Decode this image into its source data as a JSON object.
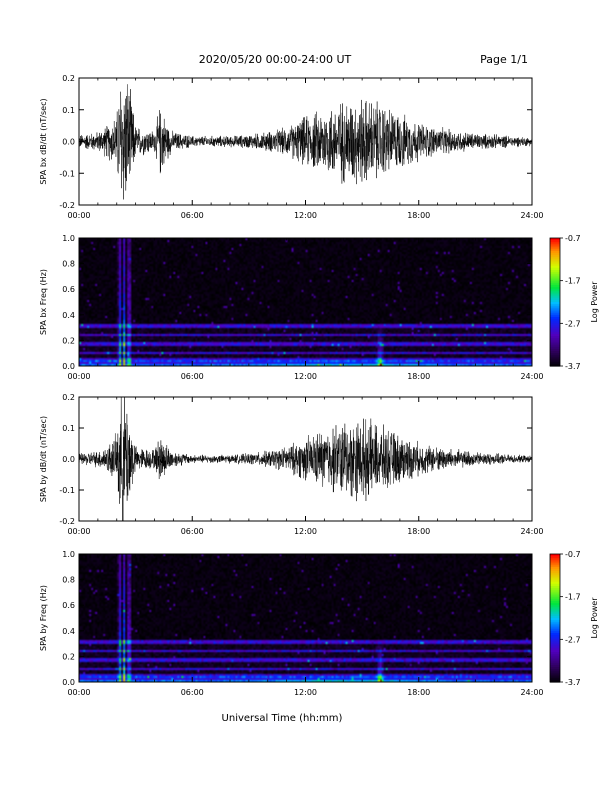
{
  "header": {
    "title": "2020/05/20  00:00-24:00 UT",
    "page": "Page 1/1"
  },
  "x_axis": {
    "title": "Universal Time (hh:mm)",
    "range_hours": [
      0,
      24
    ],
    "ticks_hours": [
      0,
      6,
      12,
      18,
      24
    ],
    "tick_labels": [
      "00:00",
      "06:00",
      "12:00",
      "18:00",
      "24:00"
    ]
  },
  "chart_data": [
    {
      "type": "line",
      "id": "bx-waveform",
      "ylabel": "SPA bx dB/dt (nT/sec)",
      "ylim": [
        -0.2,
        0.2
      ],
      "y_ticks": [
        -0.2,
        -0.1,
        0.0,
        0.1,
        0.2
      ],
      "y_tick_labels": [
        "-0.2",
        "-0.1",
        "0.0",
        "0.1",
        "0.2"
      ],
      "series": [
        {
          "x_hours": [
            0,
            1,
            1.5,
            2,
            2.2,
            2.5,
            2.8,
            3,
            4,
            4.3,
            4.8,
            5,
            6,
            7,
            8,
            9,
            10,
            11,
            12,
            13,
            14,
            15,
            16,
            17,
            18,
            19,
            20,
            21,
            22,
            23,
            24
          ],
          "envelope": [
            0.025,
            0.035,
            0.06,
            0.1,
            0.25,
            0.25,
            0.15,
            0.055,
            0.04,
            0.13,
            0.05,
            0.035,
            0.02,
            0.02,
            0.02,
            0.025,
            0.035,
            0.05,
            0.09,
            0.12,
            0.15,
            0.16,
            0.14,
            0.1,
            0.07,
            0.05,
            0.04,
            0.03,
            0.025,
            0.02,
            0.015
          ]
        }
      ]
    },
    {
      "type": "heatmap",
      "id": "bx-spectrogram",
      "ylabel": "SPA bx Freq (Hz)",
      "ylim": [
        0.0,
        1.0
      ],
      "y_ticks": [
        0.0,
        0.2,
        0.4,
        0.6,
        0.8,
        1.0
      ],
      "y_tick_labels": [
        "0.0",
        "0.2",
        "0.4",
        "0.6",
        "0.8",
        "1.0"
      ],
      "colorbar": {
        "label": "Log Power",
        "range": [
          -3.7,
          -0.7
        ],
        "ticks": [
          -0.7,
          -1.7,
          -2.7,
          -3.7
        ],
        "tick_labels": [
          "-0.7",
          "-1.7",
          "-2.7",
          "-3.7"
        ]
      },
      "bands_hz": [
        0.05,
        0.1,
        0.17,
        0.24,
        0.31
      ],
      "spikes_hours": [
        2.1,
        2.35,
        2.6
      ],
      "event_hours": 15.9
    },
    {
      "type": "line",
      "id": "by-waveform",
      "ylabel": "SPA by dB/dt (nT/sec)",
      "ylim": [
        -0.2,
        0.2
      ],
      "y_ticks": [
        -0.2,
        -0.1,
        0.0,
        0.1,
        0.2
      ],
      "y_tick_labels": [
        "-0.2",
        "-0.1",
        "0.0",
        "0.1",
        "0.2"
      ],
      "series": [
        {
          "x_hours": [
            0,
            1,
            1.5,
            2,
            2.2,
            2.5,
            2.8,
            3,
            4,
            4.3,
            4.8,
            5,
            6,
            7,
            8,
            9,
            10,
            11,
            12,
            13,
            14,
            15,
            16,
            17,
            18,
            19,
            20,
            21,
            22,
            23,
            24
          ],
          "envelope": [
            0.02,
            0.03,
            0.05,
            0.09,
            0.25,
            0.25,
            0.12,
            0.045,
            0.035,
            0.09,
            0.04,
            0.03,
            0.015,
            0.015,
            0.015,
            0.02,
            0.03,
            0.045,
            0.08,
            0.11,
            0.14,
            0.15,
            0.12,
            0.09,
            0.06,
            0.045,
            0.035,
            0.025,
            0.02,
            0.015,
            0.012
          ]
        }
      ]
    },
    {
      "type": "heatmap",
      "id": "by-spectrogram",
      "ylabel": "SPA by Freq (Hz)",
      "ylim": [
        0.0,
        1.0
      ],
      "y_ticks": [
        0.0,
        0.2,
        0.4,
        0.6,
        0.8,
        1.0
      ],
      "y_tick_labels": [
        "0.0",
        "0.2",
        "0.4",
        "0.6",
        "0.8",
        "1.0"
      ],
      "colorbar": {
        "label": "Log Power",
        "range": [
          -3.7,
          -0.7
        ],
        "ticks": [
          -0.7,
          -1.7,
          -2.7,
          -3.7
        ],
        "tick_labels": [
          "-0.7",
          "-1.7",
          "-2.7",
          "-3.7"
        ]
      },
      "bands_hz": [
        0.05,
        0.1,
        0.17,
        0.24,
        0.31
      ],
      "spikes_hours": [
        2.1,
        2.35,
        2.6
      ],
      "event_hours": 15.9
    }
  ]
}
